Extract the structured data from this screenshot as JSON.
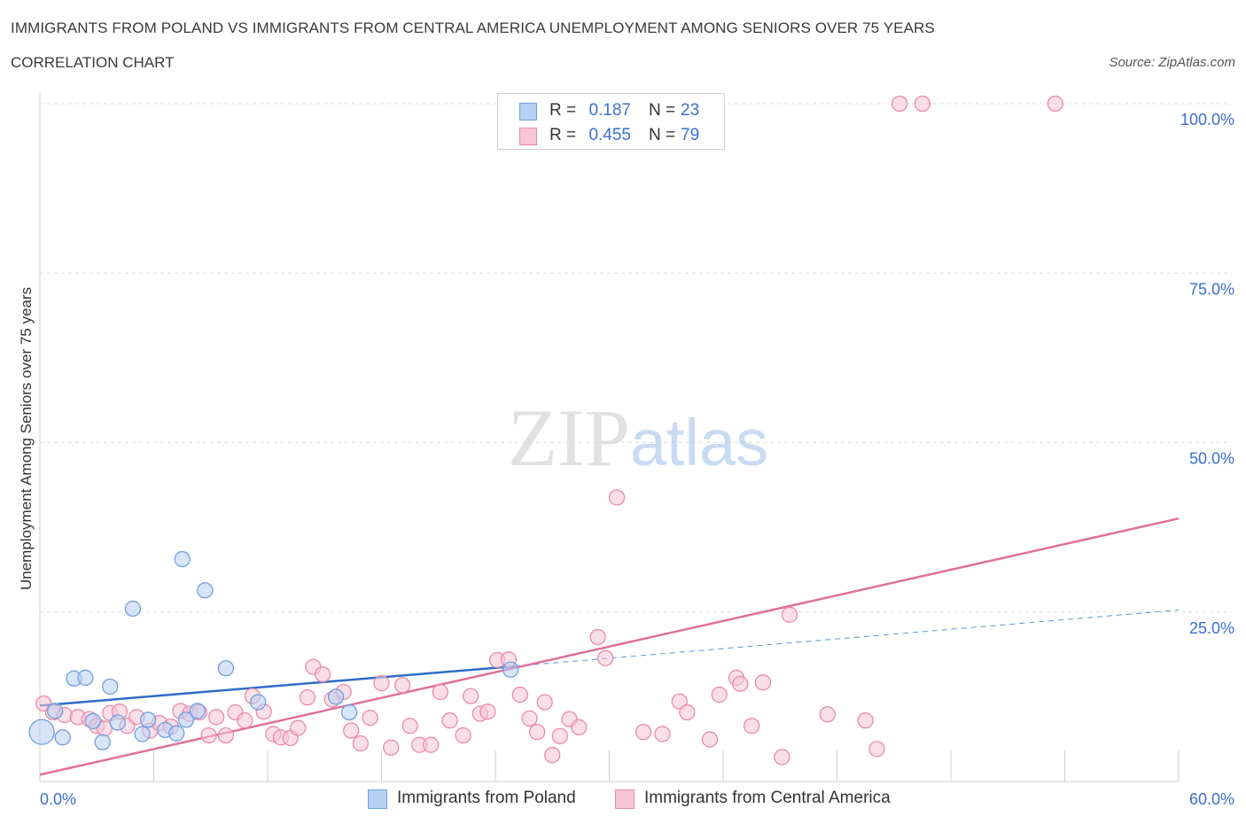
{
  "chart_data": {
    "type": "scatter",
    "title": "IMMIGRANTS FROM POLAND VS IMMIGRANTS FROM CENTRAL AMERICA UNEMPLOYMENT AMONG SENIORS OVER 75 YEARS",
    "subtitle": "CORRELATION CHART",
    "source": "Source: ZipAtlas.com",
    "watermark": "ZIPatlas",
    "xlabel": "",
    "ylabel": "Unemployment Among Seniors over 75 years",
    "xlim": [
      0,
      60
    ],
    "ylim": [
      0,
      100
    ],
    "x_tick_labels": [
      {
        "value": 0,
        "label": "0.0%"
      },
      {
        "value": 60,
        "label": "60.0%"
      }
    ],
    "y_tick_labels": [
      {
        "value": 25,
        "label": "25.0%"
      },
      {
        "value": 50,
        "label": "50.0%"
      },
      {
        "value": 75,
        "label": "75.0%"
      },
      {
        "value": 100,
        "label": "100.0%"
      }
    ],
    "grid": true,
    "legend": {
      "position": "top-center",
      "r_label": "R =",
      "n_label": "N =",
      "entries": [
        {
          "r": "0.187",
          "n": "23"
        },
        {
          "r": "0.455",
          "n": "79"
        }
      ]
    },
    "series": [
      {
        "name": "Immigrants from Poland",
        "color": "#6f9fe0",
        "fill": "#b8d0f4",
        "line_color": "#2d6cc8",
        "trend": {
          "x0": 0,
          "y0": 11.2,
          "x1": 25,
          "y1": 17.0,
          "dashed_to_x": 60,
          "dashed_to_y": 25.3
        },
        "points": [
          [
            0.1,
            7.3
          ],
          [
            1.2,
            6.5
          ],
          [
            1.8,
            15.2
          ],
          [
            2.4,
            15.3
          ],
          [
            3.3,
            5.8
          ],
          [
            3.7,
            14.0
          ],
          [
            2.8,
            8.9
          ],
          [
            4.1,
            8.7
          ],
          [
            4.9,
            25.5
          ],
          [
            5.4,
            7.0
          ],
          [
            5.7,
            9.1
          ],
          [
            6.6,
            7.6
          ],
          [
            7.2,
            7.1
          ],
          [
            7.5,
            32.8
          ],
          [
            7.7,
            9.1
          ],
          [
            8.3,
            10.4
          ],
          [
            8.7,
            28.2
          ],
          [
            9.8,
            16.7
          ],
          [
            11.5,
            11.7
          ],
          [
            15.6,
            12.5
          ],
          [
            16.3,
            10.2
          ],
          [
            24.8,
            16.5
          ],
          [
            0.8,
            10.4
          ]
        ]
      },
      {
        "name": "Immigrants from Central America",
        "color": "#e98aa8",
        "fill": "#f7c5d5",
        "line_color": "#e0709a",
        "trend": {
          "x0": 0,
          "y0": 1.0,
          "x1": 60,
          "y1": 38.8
        },
        "points": [
          [
            0.2,
            11.5
          ],
          [
            0.7,
            10.2
          ],
          [
            1.3,
            9.8
          ],
          [
            2.0,
            9.5
          ],
          [
            2.6,
            9.2
          ],
          [
            3.0,
            8.2
          ],
          [
            3.4,
            7.8
          ],
          [
            3.7,
            10.1
          ],
          [
            4.2,
            10.3
          ],
          [
            4.6,
            8.2
          ],
          [
            5.1,
            9.5
          ],
          [
            5.8,
            7.5
          ],
          [
            6.3,
            8.6
          ],
          [
            6.9,
            8.1
          ],
          [
            7.4,
            10.4
          ],
          [
            7.9,
            10.0
          ],
          [
            8.4,
            10.2
          ],
          [
            8.9,
            6.8
          ],
          [
            9.3,
            9.5
          ],
          [
            9.8,
            6.8
          ],
          [
            10.3,
            10.2
          ],
          [
            10.8,
            9.0
          ],
          [
            11.2,
            12.6
          ],
          [
            11.8,
            10.3
          ],
          [
            12.3,
            7.0
          ],
          [
            12.7,
            6.5
          ],
          [
            13.2,
            6.4
          ],
          [
            13.6,
            7.9
          ],
          [
            14.1,
            12.4
          ],
          [
            14.4,
            16.9
          ],
          [
            14.9,
            15.8
          ],
          [
            15.4,
            12.1
          ],
          [
            16.0,
            13.2
          ],
          [
            16.4,
            7.5
          ],
          [
            16.9,
            5.6
          ],
          [
            17.4,
            9.4
          ],
          [
            18.0,
            14.5
          ],
          [
            18.5,
            5.0
          ],
          [
            19.1,
            14.2
          ],
          [
            19.5,
            8.2
          ],
          [
            20.0,
            5.4
          ],
          [
            20.6,
            5.4
          ],
          [
            21.1,
            13.2
          ],
          [
            21.6,
            9.0
          ],
          [
            22.3,
            6.8
          ],
          [
            22.7,
            12.6
          ],
          [
            23.2,
            10.0
          ],
          [
            23.6,
            10.3
          ],
          [
            24.1,
            17.9
          ],
          [
            24.7,
            18.0
          ],
          [
            25.3,
            12.8
          ],
          [
            25.8,
            9.3
          ],
          [
            26.2,
            7.3
          ],
          [
            26.6,
            11.7
          ],
          [
            27.0,
            3.9
          ],
          [
            27.4,
            6.7
          ],
          [
            27.9,
            9.2
          ],
          [
            28.4,
            8.0
          ],
          [
            29.4,
            21.3
          ],
          [
            29.8,
            18.2
          ],
          [
            30.4,
            41.9
          ],
          [
            31.8,
            7.3
          ],
          [
            32.8,
            7.0
          ],
          [
            33.7,
            11.8
          ],
          [
            34.1,
            10.2
          ],
          [
            35.3,
            6.2
          ],
          [
            35.8,
            12.8
          ],
          [
            36.7,
            15.3
          ],
          [
            36.9,
            14.4
          ],
          [
            37.5,
            8.2
          ],
          [
            38.1,
            14.6
          ],
          [
            39.1,
            3.6
          ],
          [
            39.5,
            24.6
          ],
          [
            41.5,
            9.9
          ],
          [
            43.5,
            9.0
          ],
          [
            44.1,
            4.8
          ],
          [
            45.3,
            100
          ],
          [
            46.5,
            100
          ],
          [
            53.5,
            100
          ]
        ]
      }
    ]
  }
}
